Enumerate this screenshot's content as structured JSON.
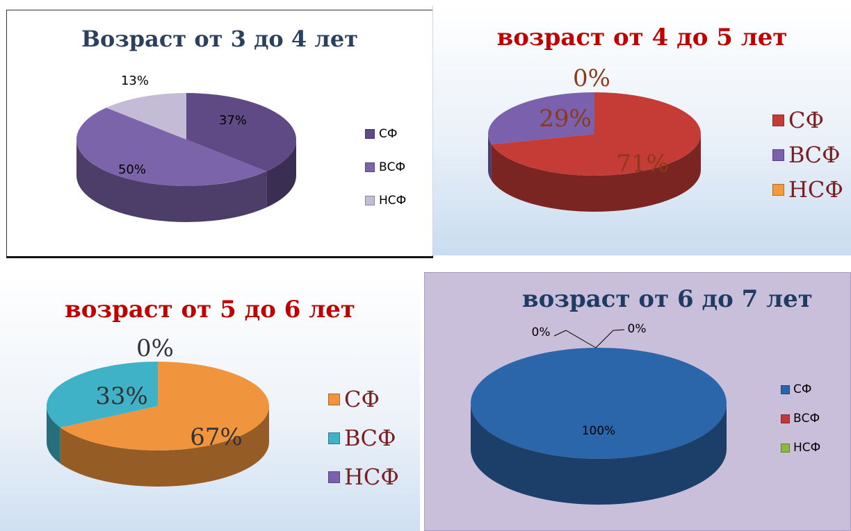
{
  "chart_data": [
    {
      "type": "pie",
      "title": "Возраст от 3 до 4 лет",
      "categories": [
        "СФ",
        "ВСФ",
        "НСФ"
      ],
      "values": [
        37,
        50,
        13
      ],
      "data_labels": [
        "37%",
        "50%",
        "13%"
      ],
      "colors": [
        "#5f4a86",
        "#7c64aa",
        "#c4bcd6"
      ],
      "legend_position": "right"
    },
    {
      "type": "pie",
      "title": "возраст от 4 до 5 лет",
      "categories": [
        "СФ",
        "ВСФ",
        "НСФ"
      ],
      "values": [
        71,
        29,
        0
      ],
      "data_labels": [
        "71%",
        "29%",
        "0%"
      ],
      "colors": [
        "#c43c35",
        "#7a60ad",
        "#f39a3b"
      ],
      "legend_position": "right"
    },
    {
      "type": "pie",
      "title": "возраст от 5 до 6 лет",
      "categories": [
        "СФ",
        "ВСФ",
        "НСФ"
      ],
      "values": [
        67,
        33,
        0
      ],
      "data_labels": [
        "67%",
        "33%",
        "0%"
      ],
      "colors": [
        "#f0953d",
        "#3fb2c8",
        "#7a60ad"
      ],
      "legend_position": "right"
    },
    {
      "type": "pie",
      "title": "возраст от 6 до 7 лет",
      "categories": [
        "СФ",
        "ВСФ",
        "НСФ"
      ],
      "values": [
        100,
        0,
        0
      ],
      "data_labels": [
        "100%",
        "0%",
        "0%"
      ],
      "colors": [
        "#2b66aa",
        "#c0383a",
        "#8db83f"
      ],
      "legend_position": "right"
    }
  ]
}
